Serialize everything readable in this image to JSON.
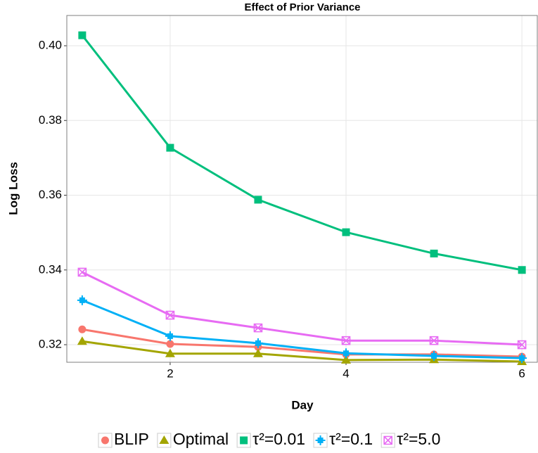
{
  "chart_data": {
    "type": "line",
    "title": "Effect of Prior Variance",
    "x_label": "Day",
    "y_label": "Log Loss",
    "x": [
      1,
      2,
      3,
      4,
      5,
      6
    ],
    "xlim": [
      0.825,
      6.175
    ],
    "xticks": [
      2,
      4,
      6
    ],
    "ylim": [
      0.3153,
      0.4081
    ],
    "yticks": [
      0.32,
      0.34,
      0.36,
      0.38,
      {
        "value": 0.4,
        "label": "0.40"
      }
    ],
    "grid": true,
    "legend": "bottom",
    "series": [
      {
        "name": "BLIP",
        "color": "#F8766D",
        "marker": "circle",
        "values": [
          0.3241,
          0.3202,
          0.3194,
          0.3174,
          0.3174,
          0.3168
        ]
      },
      {
        "name": "Optimal",
        "color": "#A3A500",
        "marker": "triangle",
        "values": [
          0.3209,
          0.3176,
          0.3176,
          0.3159,
          0.316,
          0.3155
        ]
      },
      {
        "name": "τ²=0.01",
        "color": "#00BF7D",
        "marker": "square",
        "values": [
          0.4028,
          0.3727,
          0.3588,
          0.3501,
          0.3444,
          0.34
        ]
      },
      {
        "name": "τ²=0.1",
        "color": "#00B0F6",
        "marker": "plus",
        "values": [
          0.3319,
          0.3223,
          0.3204,
          0.3177,
          0.317,
          0.3164
        ]
      },
      {
        "name": "τ²=5.0",
        "color": "#E76BF3",
        "marker": "boxx",
        "values": [
          0.3394,
          0.3279,
          0.3245,
          0.3211,
          0.3211,
          0.32
        ]
      }
    ]
  }
}
